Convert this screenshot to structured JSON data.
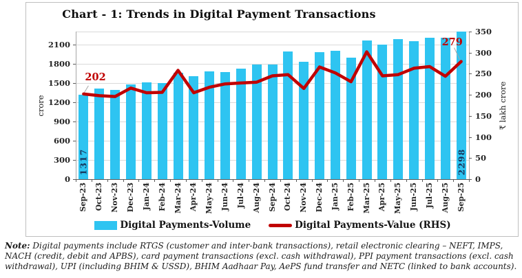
{
  "title": "Chart - 1: Trends in Digital Payment Transactions",
  "chart_data": {
    "type": "bar+line",
    "categories": [
      "Sep-23",
      "Oct-23",
      "Nov-23",
      "Dec-23",
      "Jan-24",
      "Feb-24",
      "Mar-24",
      "Apr-24",
      "May-24",
      "Jun-24",
      "Jul-24",
      "Aug-24",
      "Sep-24",
      "Oct-24",
      "Nov-24",
      "Dec-24",
      "Jan-25",
      "Feb-25",
      "Mar-25",
      "Apr-25",
      "May-25",
      "Jun-25",
      "Jul-25",
      "Aug-25",
      "Sep-25"
    ],
    "series": [
      {
        "name": "Digital Payments-Volume",
        "type": "bar",
        "axis": "left",
        "color": "#2ec4f1",
        "values": [
          1317,
          1410,
          1395,
          1480,
          1505,
          1500,
          1660,
          1600,
          1680,
          1670,
          1725,
          1785,
          1785,
          1985,
          1825,
          1975,
          2005,
          1895,
          2165,
          2100,
          2185,
          2155,
          2200,
          2200,
          2298
        ]
      },
      {
        "name": "Digital Payments-Value (RHS)",
        "type": "line",
        "axis": "right",
        "color": "#c00000",
        "values": [
          202,
          198,
          196,
          216,
          205,
          206,
          258,
          205,
          218,
          226,
          228,
          230,
          245,
          248,
          215,
          266,
          252,
          231,
          302,
          245,
          248,
          263,
          267,
          244,
          279
        ]
      }
    ],
    "left_axis": {
      "label": "crore",
      "ticks": [
        0,
        300,
        600,
        900,
        1200,
        1500,
        1800,
        2100
      ],
      "max": 2300
    },
    "right_axis": {
      "label": "₹ lakh crore",
      "ticks": [
        0,
        50,
        100,
        150,
        200,
        250,
        300,
        350
      ],
      "max": 350
    },
    "grid": true,
    "legend_position": "bottom",
    "annotations": [
      {
        "text": "202",
        "series": "line",
        "index": 0,
        "color": "#c00000"
      },
      {
        "text": "279",
        "series": "line",
        "index": 24,
        "color": "#c00000"
      },
      {
        "text": "1317",
        "series": "bar",
        "index": 0,
        "color": "#17375e"
      },
      {
        "text": "2298",
        "series": "bar",
        "index": 24,
        "color": "#17375e"
      }
    ]
  },
  "legend": {
    "volume_label": "Digital Payments-Volume",
    "value_label": "Digital Payments-Value (RHS)"
  },
  "note": {
    "prefix": "Note:",
    "body": " Digital payments include RTGS (customer and inter-bank transactions), retail electronic clearing – NEFT, IMPS, NACH (credit, debit and APBS), card payment transactions (excl. cash withdrawal), PPI payment transactions (excl. cash withdrawal), UPI (including BHIM & USSD), BHIM Aadhaar Pay, AePS fund transfer and NETC (linked to bank accounts)."
  }
}
